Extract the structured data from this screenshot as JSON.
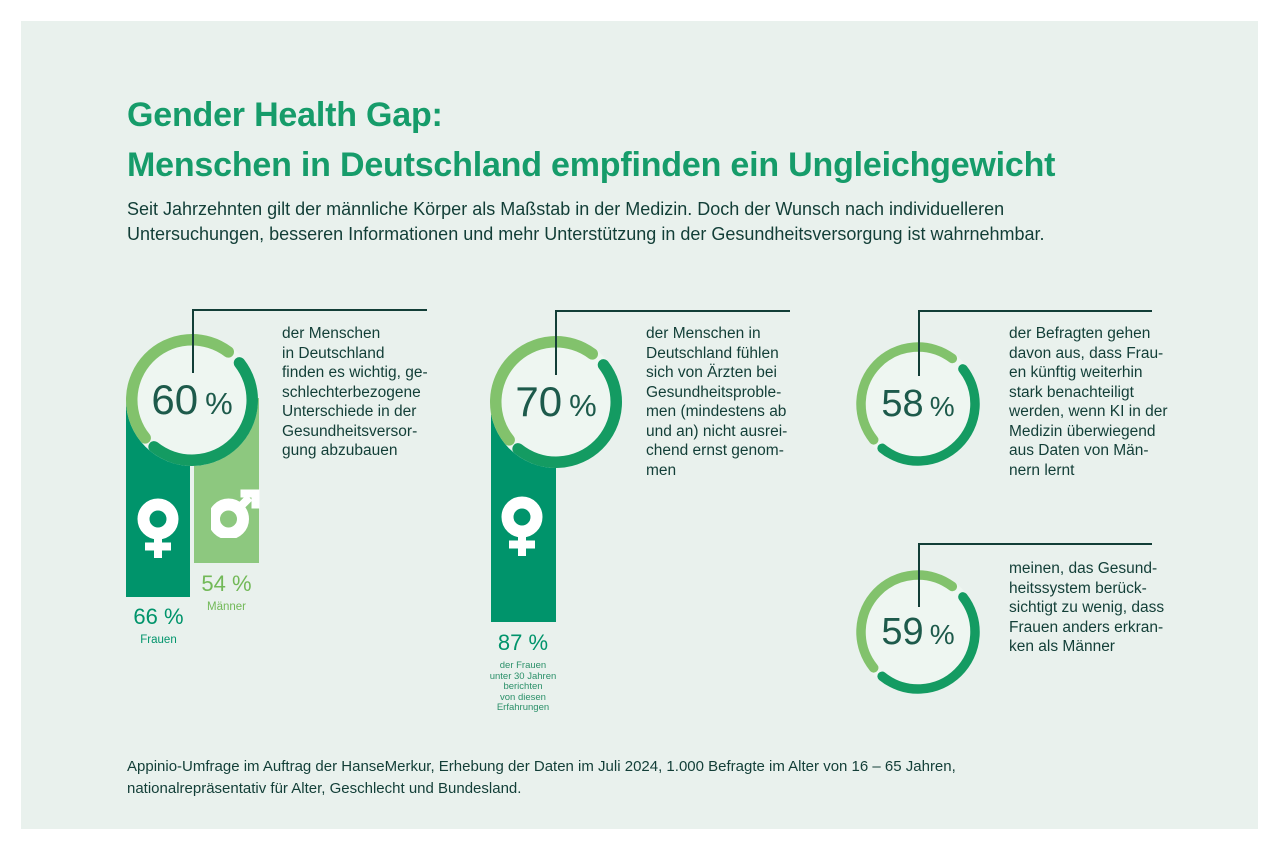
{
  "header": {
    "title_lines": [
      "Gender Health Gap:",
      "Menschen in Deutschland empfinden ein Ungleichgewicht"
    ],
    "subtitle_lines": [
      "Seit Jahrzehnten gilt der männliche Körper als Maßstab in der Medizin. Doch der Wunsch nach individuelleren",
      "Untersuchungen, besseren Informationen und mehr Unterstützung in der Gesundheitsversorgung ist wahrnehmbar."
    ]
  },
  "footer": {
    "lines": [
      "Appinio-Umfrage im Auftrag der HanseMerkur, Erhebung der Daten im Juli 2024, 1.000 Befragte im Alter von 16 – 65 Jahren,",
      "nationalrepräsentativ für Alter, Geschlecht und Bundesland."
    ]
  },
  "colors": {
    "card_background": "#e9f1ed",
    "donut_fill": "#eef6f1",
    "ring_light": "#82c26c",
    "ring_dark": "#149b62",
    "bar_dark_green": "#00946b",
    "bar_light_green": "#8dc87f",
    "label_dark_green": "#00946b",
    "label_light_green": "#72b958",
    "label_medium_green": "#2b9069",
    "number_green": "#1d5a4b",
    "text_dark": "#123e37",
    "brand_green": "#169c6a",
    "icon_white": "#ffffff"
  },
  "chart_data": [
    {
      "type": "donut",
      "value": 60,
      "value_label": "60",
      "unit": "%",
      "description_lines": [
        "der Menschen",
        "in Deutschland",
        "finden es wichtig, ge-",
        "schlechterbezogene",
        "Unterschiede in der",
        "Gesundheitsversor-",
        "gung abzubauen"
      ],
      "breakdown": {
        "type": "bar",
        "series": [
          {
            "gender": "female",
            "icon": "female-gender-icon",
            "value": 66,
            "value_label": "66 %",
            "label": "Frauen"
          },
          {
            "gender": "male",
            "icon": "male-gender-icon",
            "value": 54,
            "value_label": "54 %",
            "label": "Männer"
          }
        ]
      }
    },
    {
      "type": "donut",
      "value": 70,
      "value_label": "70",
      "unit": "%",
      "description_lines": [
        "der Menschen in",
        "Deutschland fühlen",
        "sich von Ärzten bei",
        "Gesundheitsproble-",
        "men (mindestens ab",
        "und an) nicht ausrei-",
        "chend ernst genom-",
        "men"
      ],
      "breakdown": {
        "type": "bar",
        "series": [
          {
            "gender": "female",
            "icon": "female-gender-icon",
            "value": 87,
            "value_label": "87 %",
            "label_lines": [
              "der Frauen",
              "unter 30 Jahren",
              "berichten",
              "von diesen",
              "Erfahrungen"
            ]
          }
        ]
      }
    },
    {
      "type": "donut",
      "value": 58,
      "value_label": "58",
      "unit": "%",
      "description_lines": [
        "der Befragten gehen",
        "davon aus, dass Frau-",
        "en künftig weiterhin",
        "stark benachteiligt",
        "werden, wenn KI in der",
        "Medizin überwiegend",
        "aus Daten von Män-",
        "nern lernt"
      ]
    },
    {
      "type": "donut",
      "value": 59,
      "value_label": "59",
      "unit": "%",
      "description_lines": [
        "meinen, das Gesund-",
        "heitssystem berück-",
        "sichtigt zu wenig, dass",
        "Frauen anders erkran-",
        "ken als Männer"
      ]
    }
  ]
}
